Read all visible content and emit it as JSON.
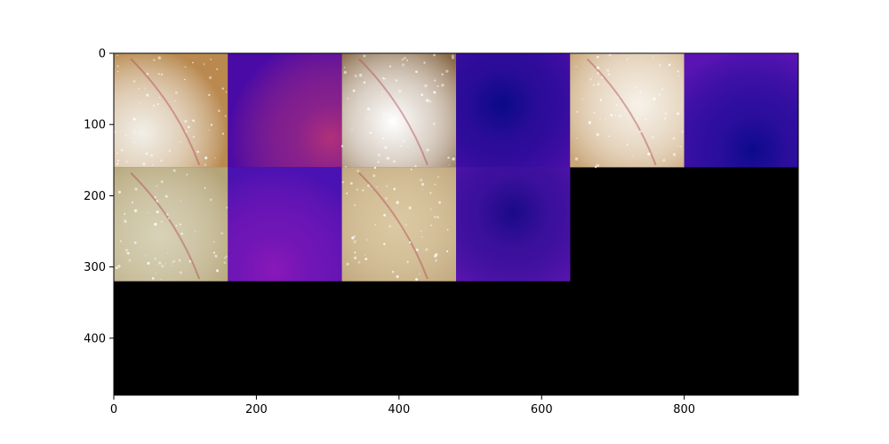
{
  "chart_data": {
    "type": "heatmap",
    "title": "",
    "xlabel": "",
    "ylabel": "",
    "xlim": [
      0,
      960
    ],
    "ylim": [
      480,
      0
    ],
    "x_ticks": [
      0,
      200,
      400,
      600,
      800
    ],
    "y_ticks": [
      0,
      100,
      200,
      300,
      400
    ],
    "x_tick_labels": [
      "0",
      "200",
      "400",
      "600",
      "800"
    ],
    "y_tick_labels": [
      "0",
      "100",
      "200",
      "300",
      "400"
    ],
    "grid": false,
    "tile_size": 160,
    "tiles": [
      {
        "row": 0,
        "col": 0,
        "kind": "fundus",
        "base": "#b9894f",
        "glow": "#f2efe8",
        "cx": 0.25,
        "cy": 0.7
      },
      {
        "row": 0,
        "col": 1,
        "kind": "flow",
        "base": "#4a0aa6",
        "glow": "#b0307a",
        "cx": 0.9,
        "cy": 0.75
      },
      {
        "row": 0,
        "col": 2,
        "kind": "fundus",
        "base": "#8a6a48",
        "glow": "#ffffff",
        "cx": 0.45,
        "cy": 0.6
      },
      {
        "row": 0,
        "col": 3,
        "kind": "flow",
        "base": "#5a0fb0",
        "glow": "#0a0a88",
        "cx": 0.4,
        "cy": 0.45
      },
      {
        "row": 0,
        "col": 4,
        "kind": "fundus",
        "base": "#c9a578",
        "glow": "#f7f2ea",
        "cx": 0.6,
        "cy": 0.45
      },
      {
        "row": 0,
        "col": 5,
        "kind": "flow",
        "base": "#5a14b4",
        "glow": "#0c0a8c",
        "cx": 0.6,
        "cy": 0.85
      },
      {
        "row": 1,
        "col": 0,
        "kind": "fundus",
        "base": "#b4a478",
        "glow": "#d8d2b8",
        "cx": 0.4,
        "cy": 0.6
      },
      {
        "row": 1,
        "col": 1,
        "kind": "flow",
        "base": "#4a12b2",
        "glow": "#8a18b8",
        "cx": 0.4,
        "cy": 0.9
      },
      {
        "row": 1,
        "col": 2,
        "kind": "fundus",
        "base": "#bda37a",
        "glow": "#dccaa4",
        "cx": 0.5,
        "cy": 0.5
      },
      {
        "row": 1,
        "col": 3,
        "kind": "flow",
        "base": "#6a18b8",
        "glow": "#1a0a88",
        "cx": 0.5,
        "cy": 0.4
      }
    ],
    "empty_color": "#000000"
  }
}
